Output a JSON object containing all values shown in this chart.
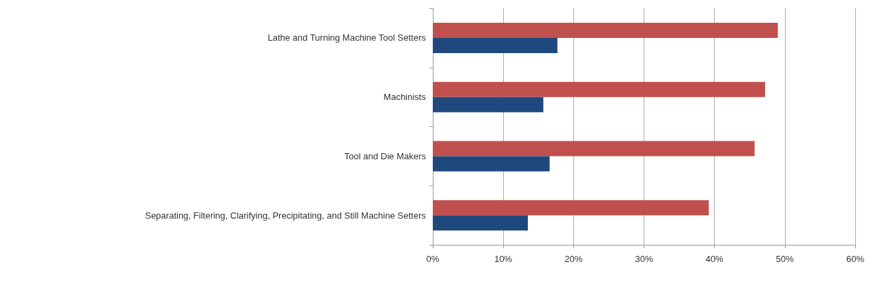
{
  "chart_data": {
    "type": "bar",
    "orientation": "horizontal",
    "categories": [
      "Lathe and Turning Machine Tool Setters",
      "Machinists",
      "Tool and Die Makers",
      "Separating, Filtering, Clarifying, Precipitating, and Still Machine Setters"
    ],
    "series": [
      {
        "color": "#c0504d",
        "values": [
          49.0,
          47.2,
          45.7,
          39.2
        ]
      },
      {
        "color": "#1f497d",
        "values": [
          17.7,
          15.7,
          16.6,
          13.5
        ]
      }
    ],
    "xlim": [
      0,
      60
    ],
    "xticks": [
      {
        "value": 0,
        "label": "0%"
      },
      {
        "value": 10,
        "label": "10%"
      },
      {
        "value": 20,
        "label": "20%"
      },
      {
        "value": 30,
        "label": "30%"
      },
      {
        "value": 40,
        "label": "40%"
      },
      {
        "value": 50,
        "label": "50%"
      },
      {
        "value": 60,
        "label": "60%"
      }
    ],
    "grid": "x"
  }
}
